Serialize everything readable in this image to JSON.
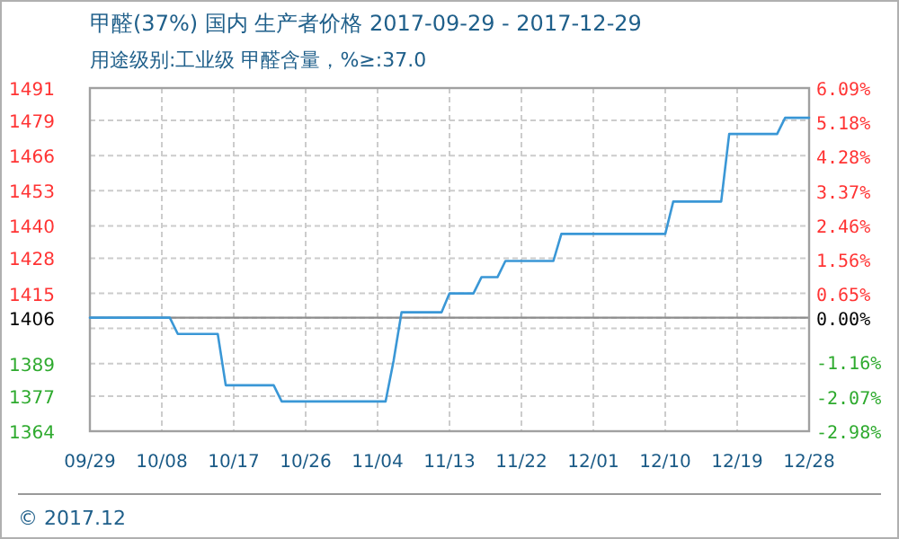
{
  "chart_data": {
    "type": "line",
    "title": "甲醛(37%) 国内 生产者价格 2017-09-29 - 2017-12-29",
    "subtitle": "用途级别:工业级 甲醛含量，%≥:37.0",
    "x": [
      "2017-09-29",
      "2017-10-09",
      "2017-10-10",
      "2017-10-15",
      "2017-10-16",
      "2017-10-22",
      "2017-10-23",
      "2017-11-05",
      "2017-11-06",
      "2017-11-07",
      "2017-11-12",
      "2017-11-13",
      "2017-11-16",
      "2017-11-17",
      "2017-11-19",
      "2017-11-20",
      "2017-11-26",
      "2017-11-27",
      "2017-12-10",
      "2017-12-11",
      "2017-12-17",
      "2017-12-18",
      "2017-12-24",
      "2017-12-25",
      "2017-12-28"
    ],
    "series": [
      {
        "color": "#3a97d6",
        "values": [
          1406,
          1406,
          1400,
          1400,
          1381,
          1381,
          1375,
          1375,
          1390,
          1408,
          1408,
          1415,
          1415,
          1421,
          1421,
          1427,
          1427,
          1437,
          1437,
          1449,
          1449,
          1474,
          1474,
          1480,
          1480
        ]
      }
    ],
    "xlim": [
      "2017-09-29",
      "2017-12-28"
    ],
    "xticks": [
      {
        "value": "2017-09-29",
        "label": "09/29"
      },
      {
        "value": "2017-10-08",
        "label": "10/08"
      },
      {
        "value": "2017-10-17",
        "label": "10/17"
      },
      {
        "value": "2017-10-26",
        "label": "10/26"
      },
      {
        "value": "2017-11-04",
        "label": "11/04"
      },
      {
        "value": "2017-11-13",
        "label": "11/13"
      },
      {
        "value": "2017-11-22",
        "label": "11/22"
      },
      {
        "value": "2017-12-01",
        "label": "12/01"
      },
      {
        "value": "2017-12-10",
        "label": "12/10"
      },
      {
        "value": "2017-12-19",
        "label": "12/19"
      },
      {
        "value": "2017-12-28",
        "label": "12/28"
      }
    ],
    "ylim": [
      1364,
      1491
    ],
    "yticks": [
      1491,
      1479,
      1466,
      1453,
      1440,
      1428,
      1415,
      1406,
      {
        "value": 1402.1,
        "label": null
      },
      1389,
      1377,
      1364
    ],
    "y2lim": [
      -2.98,
      6.09
    ],
    "y2ticks": [
      {
        "value": 6.09,
        "label": "6.09%"
      },
      {
        "value": 5.18,
        "label": "5.18%"
      },
      {
        "value": 4.28,
        "label": "4.28%"
      },
      {
        "value": 3.37,
        "label": "3.37%"
      },
      {
        "value": 2.46,
        "label": "2.46%"
      },
      {
        "value": 1.56,
        "label": "1.56%"
      },
      {
        "value": 0.65,
        "label": "0.65%"
      },
      {
        "value": 0,
        "label": "0.00%"
      },
      {
        "value": -1.16,
        "label": "-1.16%"
      },
      {
        "value": -2.07,
        "label": "-2.07%"
      },
      {
        "value": -2.98,
        "label": "-2.98%"
      }
    ],
    "ref_lines": [
      {
        "axis": "y",
        "value": 1406,
        "color": "#8c8c8c"
      }
    ],
    "grid": true,
    "annotations": [
      "© 2017.12"
    ]
  }
}
